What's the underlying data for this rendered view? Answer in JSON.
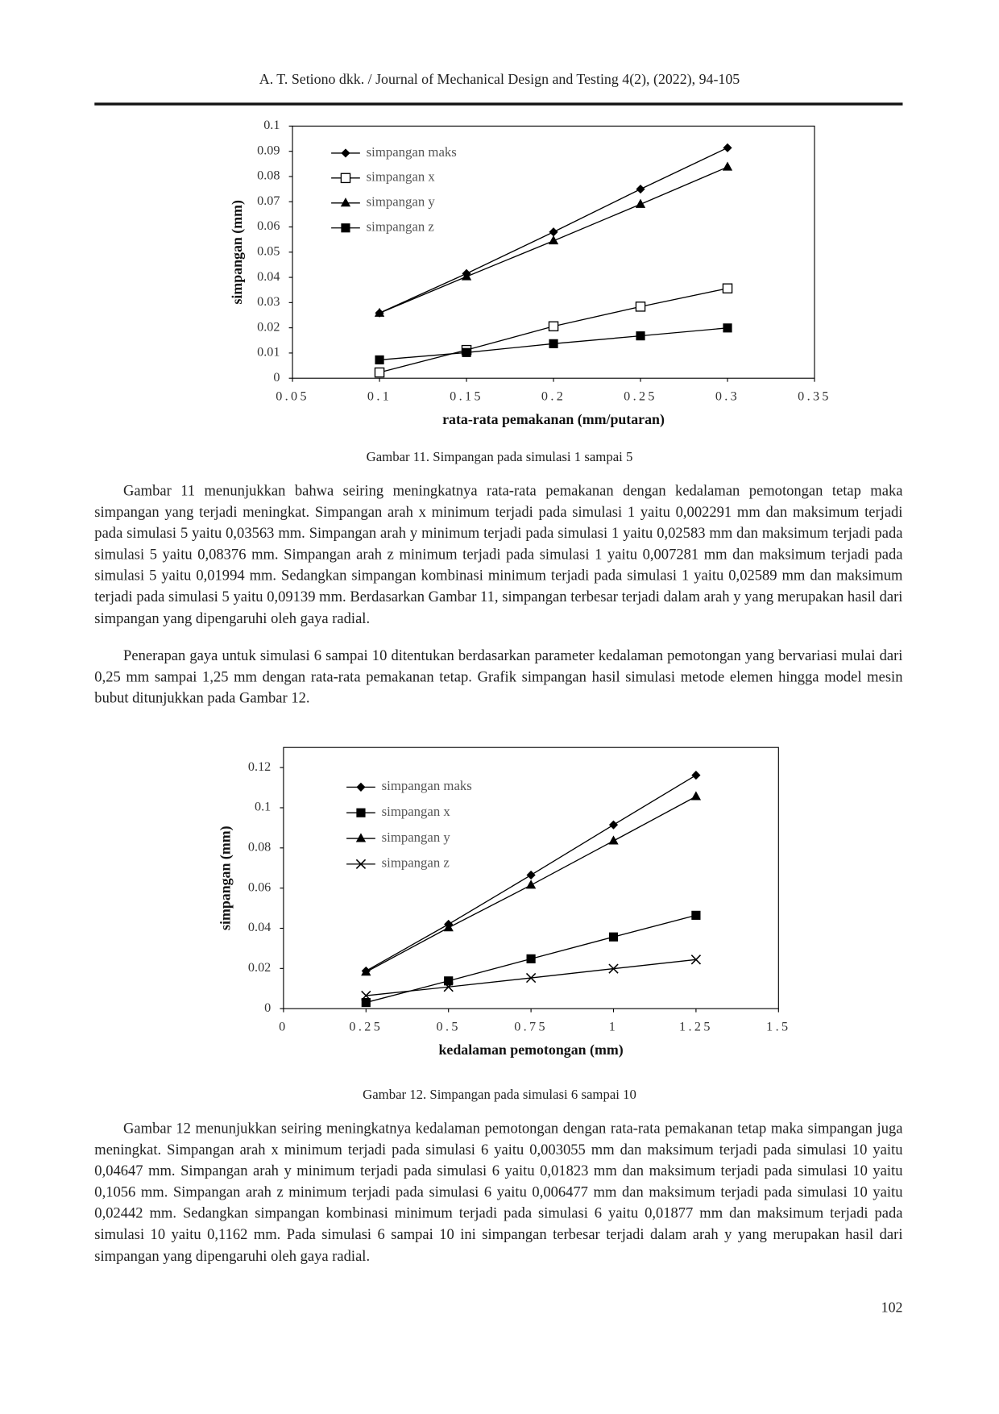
{
  "header": "A. T. Setiono dkk. / Journal of Mechanical Design and Testing 4(2), (2022), 94-105",
  "chart_data": [
    {
      "type": "line",
      "xlabel": "rata-rata pemakanan (mm/putaran)",
      "ylabel": "simpangan (mm)",
      "x": [
        0.1,
        0.15,
        0.2,
        0.25,
        0.3
      ],
      "series": [
        {
          "name": "simpangan maks",
          "color": "#000000",
          "marker": "diamond",
          "values": [
            0.02589,
            0.0415,
            0.058,
            0.075,
            0.09139
          ]
        },
        {
          "name": "simpangan x",
          "color": "#000000",
          "marker": "square-open",
          "values": [
            0.002291,
            0.0112,
            0.0206,
            0.0284,
            0.03563
          ]
        },
        {
          "name": "simpangan y",
          "color": "#000000",
          "marker": "triangle",
          "values": [
            0.02583,
            0.0403,
            0.0545,
            0.069,
            0.08376
          ]
        },
        {
          "name": "simpangan z",
          "color": "#000000",
          "marker": "square",
          "values": [
            0.007281,
            0.0102,
            0.0137,
            0.0168,
            0.01994
          ]
        }
      ],
      "xlim": [
        0.05,
        0.35
      ],
      "xticks": [
        0.05,
        0.1,
        0.15,
        0.2,
        0.25,
        0.3,
        0.35
      ],
      "ylim": [
        0,
        0.1
      ],
      "yticks": [
        0,
        0.01,
        0.02,
        0.03,
        0.04,
        0.05,
        0.06,
        0.07,
        0.08,
        0.09,
        0.1
      ],
      "grid": false,
      "legend": "upper left"
    },
    {
      "type": "line",
      "xlabel": "kedalaman pemotongan (mm)",
      "ylabel": "simpangan (mm)",
      "x": [
        0.25,
        0.5,
        0.75,
        1,
        1.25
      ],
      "series": [
        {
          "name": "simpangan maks",
          "color": "#000000",
          "marker": "diamond",
          "values": [
            0.01877,
            0.042,
            0.0665,
            0.0915,
            0.1162
          ]
        },
        {
          "name": "simpangan x",
          "color": "#000000",
          "marker": "square",
          "values": [
            0.003055,
            0.0138,
            0.0248,
            0.0357,
            0.04647
          ]
        },
        {
          "name": "simpangan y",
          "color": "#000000",
          "marker": "triangle",
          "values": [
            0.01823,
            0.0403,
            0.0615,
            0.0835,
            0.1056
          ]
        },
        {
          "name": "simpangan z",
          "color": "#000000",
          "marker": "x",
          "values": [
            0.006477,
            0.0108,
            0.0153,
            0.0199,
            0.02442
          ]
        }
      ],
      "xlim": [
        0,
        1.5
      ],
      "xticks": [
        0,
        0.25,
        0.5,
        0.75,
        1,
        1.25,
        1.5
      ],
      "ylim": [
        0,
        0.13
      ],
      "yticks": [
        0,
        0.02,
        0.04,
        0.06,
        0.08,
        0.1,
        0.12
      ],
      "grid": false,
      "legend": "upper left"
    }
  ],
  "captions": [
    "Gambar 11. Simpangan pada simulasi 1 sampai 5",
    "Gambar 12. Simpangan pada simulasi 6 sampai 10"
  ],
  "paragraphs": [
    "Gambar 11 menunjukkan bahwa seiring meningkatnya rata-rata pemakanan dengan kedalaman pemotongan tetap maka simpangan yang terjadi meningkat. Simpangan arah x minimum terjadi pada simulasi 1 yaitu 0,002291 mm dan maksimum terjadi pada simulasi 5 yaitu 0,03563 mm. Simpangan arah y minimum terjadi pada simulasi 1 yaitu 0,02583 mm dan maksimum terjadi pada simulasi 5 yaitu 0,08376 mm. Simpangan arah z minimum terjadi pada simulasi 1 yaitu 0,007281 mm dan maksimum terjadi pada simulasi 5 yaitu 0,01994 mm. Sedangkan simpangan kombinasi minimum terjadi pada simulasi 1 yaitu 0,02589 mm dan maksimum terjadi pada simulasi 5 yaitu 0,09139 mm. Berdasarkan Gambar 11, simpangan terbesar terjadi dalam arah y yang merupakan hasil dari simpangan yang dipengaruhi oleh gaya radial.",
    "Penerapan gaya untuk simulasi 6 sampai 10 ditentukan berdasarkan parameter kedalaman pemotongan yang bervariasi mulai dari 0,25 mm sampai 1,25 mm dengan rata-rata pemakanan tetap. Grafik simpangan hasil simulasi metode elemen hingga model mesin bubut ditunjukkan pada Gambar 12.",
    "Gambar 12 menunjukkan seiring meningkatnya kedalaman pemotongan dengan rata-rata pemakanan tetap maka simpangan juga meningkat. Simpangan arah x minimum terjadi pada simulasi 6 yaitu 0,003055 mm dan maksimum terjadi pada simulasi 10 yaitu 0,04647 mm. Simpangan arah y minimum terjadi pada simulasi 6 yaitu 0,01823 mm dan maksimum terjadi pada simulasi 10 yaitu 0,1056 mm. Simpangan arah z minimum terjadi pada simulasi 6 yaitu 0,006477 mm dan maksimum terjadi pada simulasi 10 yaitu 0,02442 mm. Sedangkan simpangan kombinasi minimum terjadi pada simulasi 6 yaitu 0,01877 mm dan maksimum terjadi pada simulasi 10 yaitu 0,1162 mm. Pada simulasi 6 sampai 10 ini simpangan terbesar terjadi dalam arah y yang merupakan hasil dari simpangan yang dipengaruhi oleh gaya radial."
  ],
  "page_number": "102"
}
